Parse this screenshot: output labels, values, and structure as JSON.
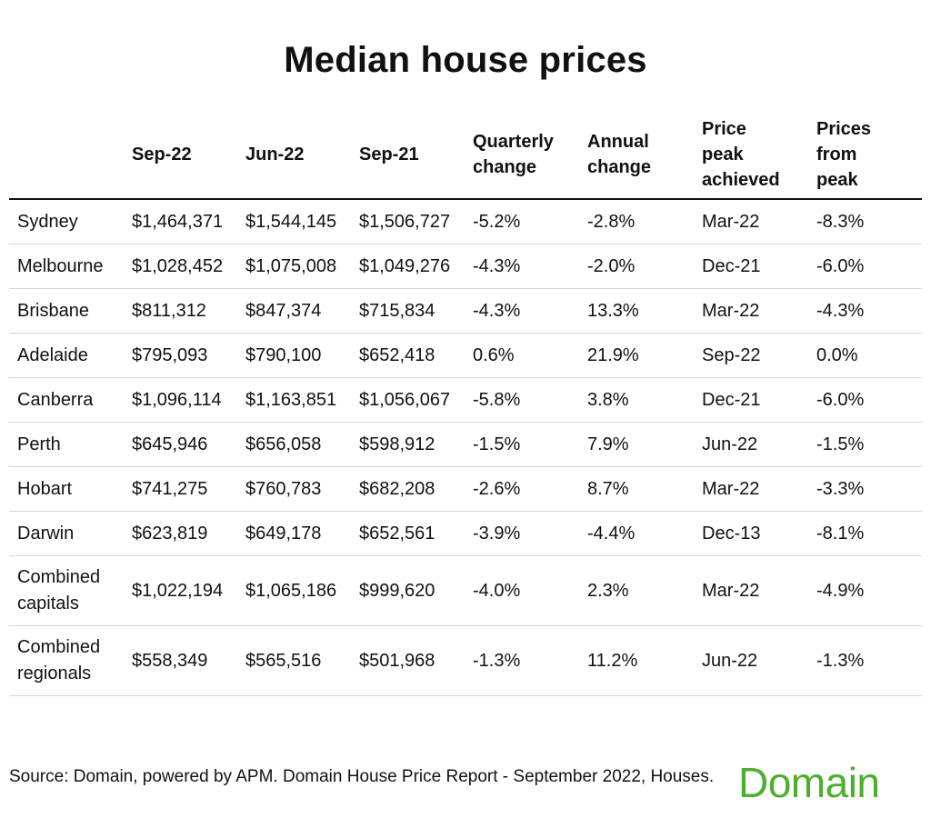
{
  "chart_data": {
    "type": "table",
    "title": "Median house prices",
    "columns": [
      "",
      "Sep-22",
      "Jun-22",
      "Sep-21",
      "Quarterly change",
      "Annual change",
      "Price peak achieved",
      "Prices from peak"
    ],
    "rows": [
      {
        "region": "Sydney",
        "sep22": "$1,464,371",
        "jun22": "$1,544,145",
        "sep21": "$1,506,727",
        "quarterly": "-5.2%",
        "annual": "-2.8%",
        "peak": "Mar-22",
        "from_peak": "-8.3%"
      },
      {
        "region": "Melbourne",
        "sep22": "$1,028,452",
        "jun22": "$1,075,008",
        "sep21": "$1,049,276",
        "quarterly": "-4.3%",
        "annual": "-2.0%",
        "peak": "Dec-21",
        "from_peak": "-6.0%"
      },
      {
        "region": "Brisbane",
        "sep22": "$811,312",
        "jun22": "$847,374",
        "sep21": "$715,834",
        "quarterly": "-4.3%",
        "annual": "13.3%",
        "peak": "Mar-22",
        "from_peak": "-4.3%"
      },
      {
        "region": "Adelaide",
        "sep22": "$795,093",
        "jun22": "$790,100",
        "sep21": "$652,418",
        "quarterly": "0.6%",
        "annual": "21.9%",
        "peak": "Sep-22",
        "from_peak": "0.0%"
      },
      {
        "region": "Canberra",
        "sep22": "$1,096,114",
        "jun22": "$1,163,851",
        "sep21": "$1,056,067",
        "quarterly": "-5.8%",
        "annual": "3.8%",
        "peak": "Dec-21",
        "from_peak": "-6.0%"
      },
      {
        "region": "Perth",
        "sep22": "$645,946",
        "jun22": "$656,058",
        "sep21": "$598,912",
        "quarterly": "-1.5%",
        "annual": "7.9%",
        "peak": "Jun-22",
        "from_peak": "-1.5%"
      },
      {
        "region": "Hobart",
        "sep22": "$741,275",
        "jun22": "$760,783",
        "sep21": "$682,208",
        "quarterly": "-2.6%",
        "annual": "8.7%",
        "peak": "Mar-22",
        "from_peak": "-3.3%"
      },
      {
        "region": "Darwin",
        "sep22": "$623,819",
        "jun22": "$649,178",
        "sep21": "$652,561",
        "quarterly": "-3.9%",
        "annual": "-4.4%",
        "peak": "Dec-13",
        "from_peak": "-8.1%"
      },
      {
        "region": "Combined capitals",
        "sep22": "$1,022,194",
        "jun22": "$1,065,186",
        "sep21": "$999,620",
        "quarterly": "-4.0%",
        "annual": "2.3%",
        "peak": "Mar-22",
        "from_peak": "-4.9%"
      },
      {
        "region": "Combined regionals",
        "sep22": "$558,349",
        "jun22": "$565,516",
        "sep21": "$501,968",
        "quarterly": "-1.3%",
        "annual": "11.2%",
        "peak": "Jun-22",
        "from_peak": "-1.3%"
      }
    ]
  },
  "footer": {
    "source": "Source: Domain, powered by APM. Domain House Price Report - September 2022, Houses.",
    "logo": "Domain",
    "logo_color": "#4caf2e"
  }
}
